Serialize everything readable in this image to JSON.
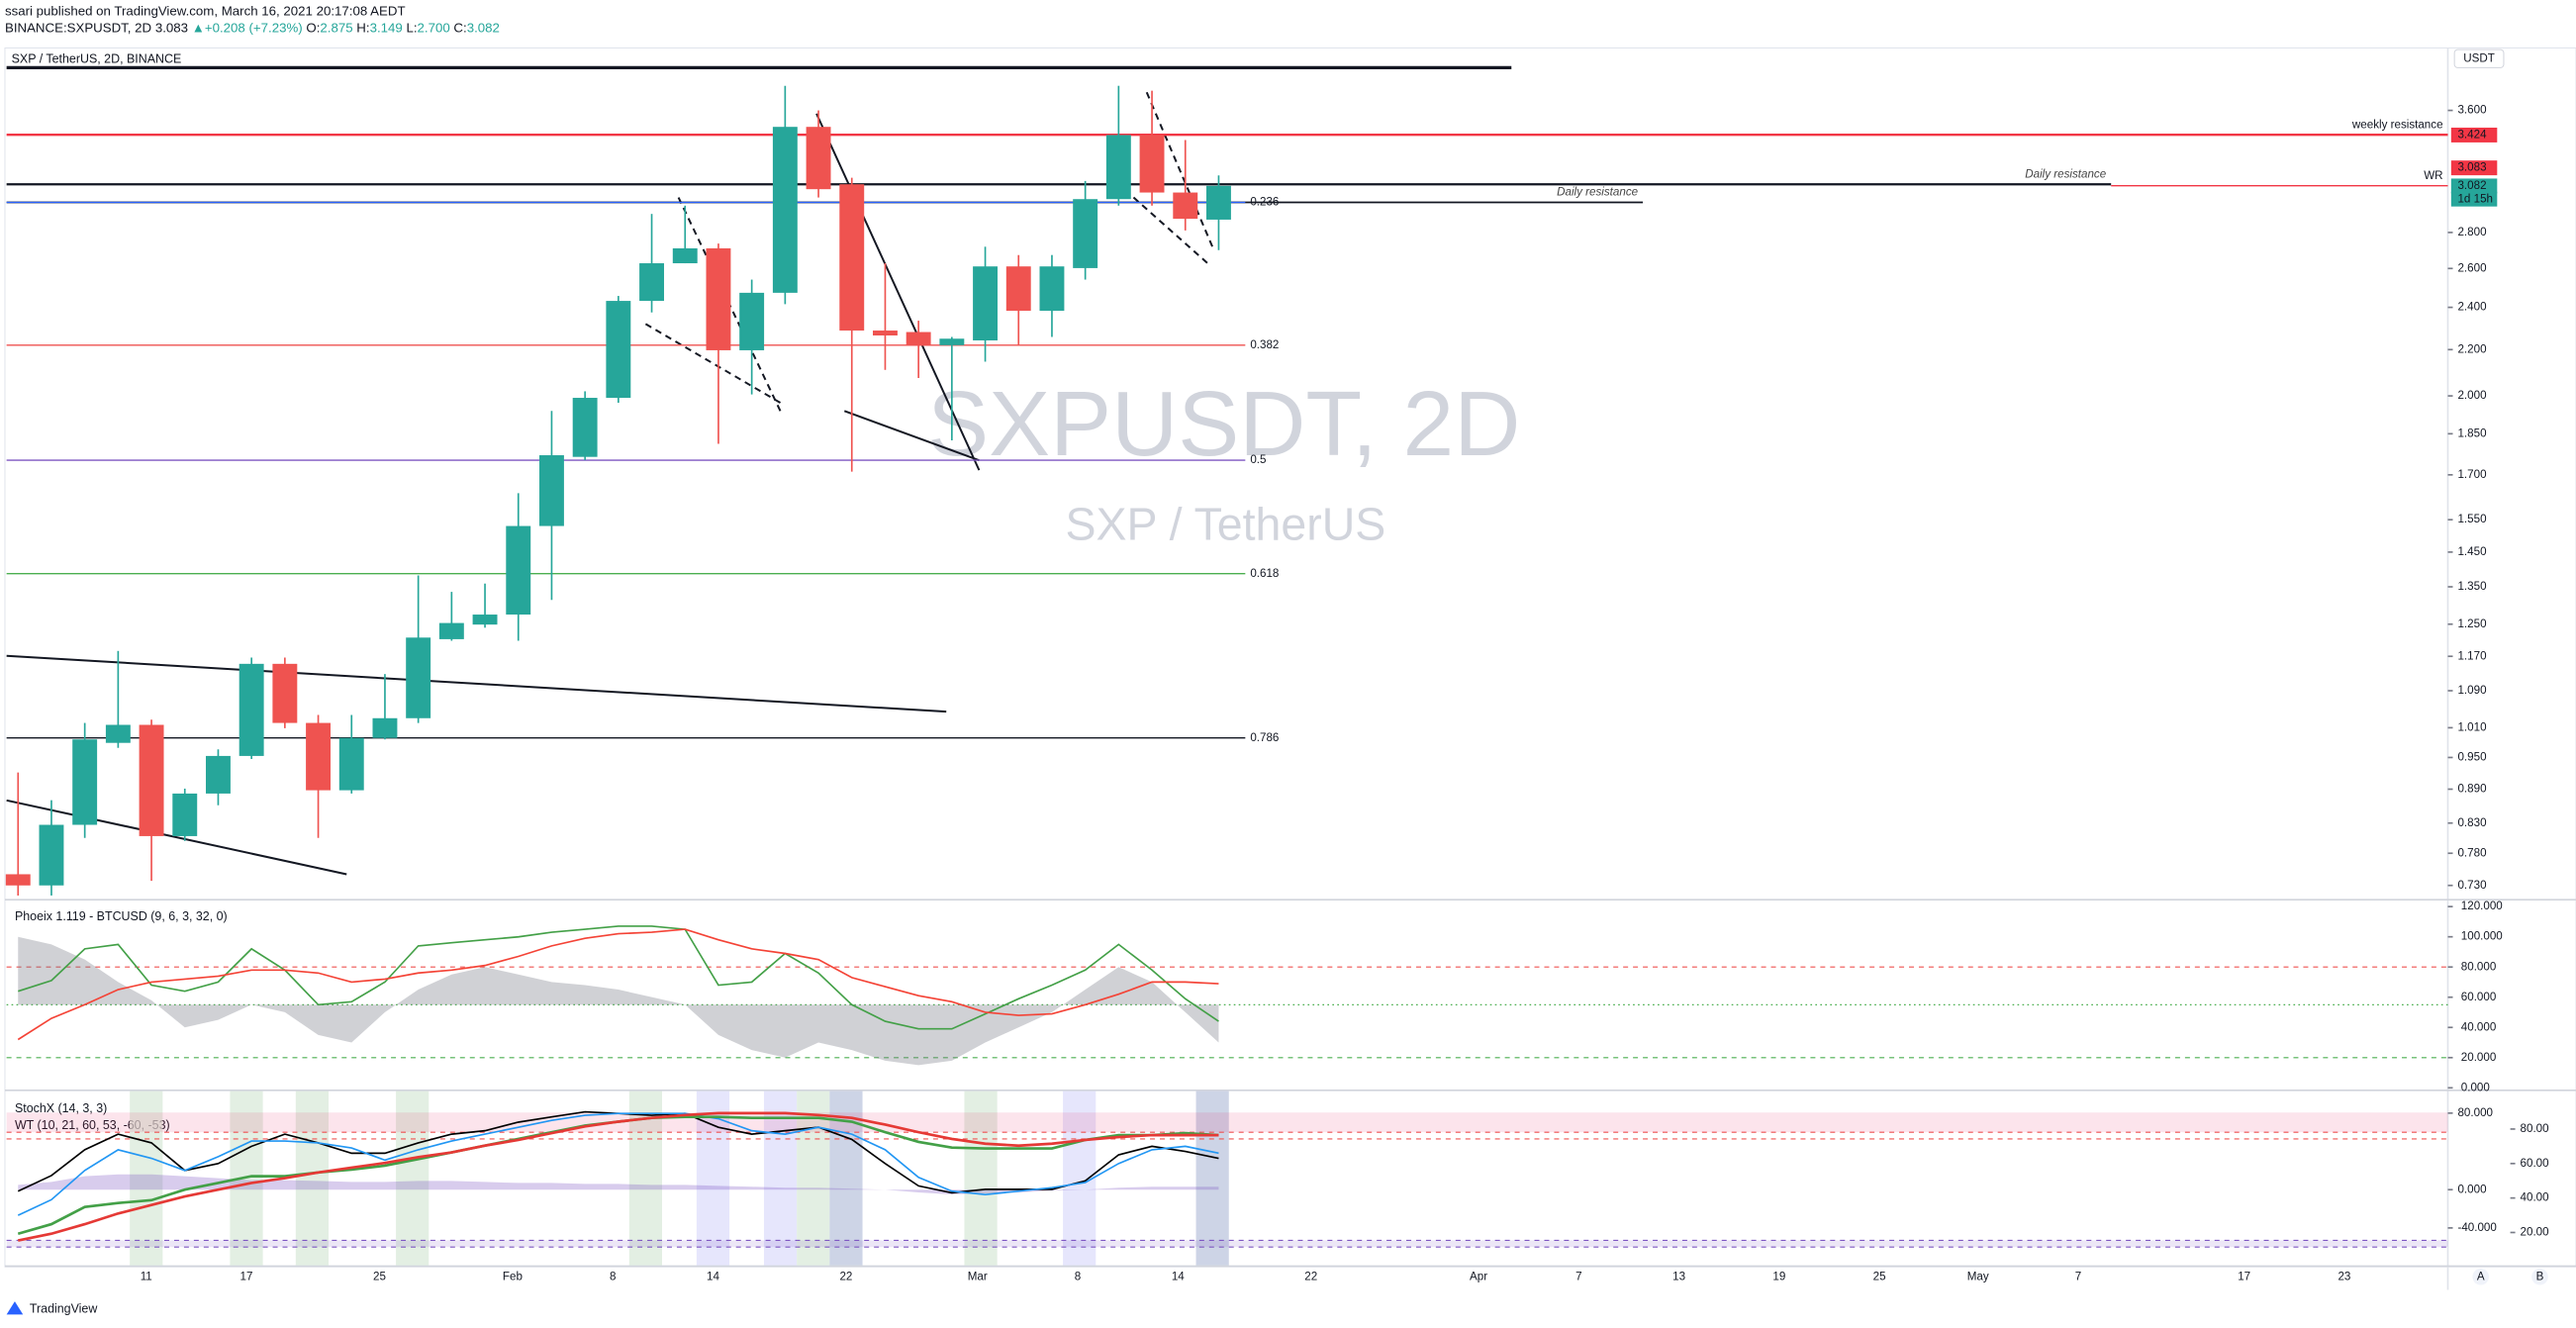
{
  "header": {
    "line1": "ssari published on TradingView.com, March 16, 2021 20:17:08 AEDT",
    "symbol": "BINANCE:SXPUSDT, 2D",
    "last": "3.083",
    "arrow": "▲",
    "change": "+0.208 (+7.23%)",
    "o_label": "O:",
    "o": "2.875",
    "h_label": "H:",
    "h": "3.149",
    "l_label": "L:",
    "l": "2.700",
    "c_label": "C:",
    "c": "3.082"
  },
  "footer": {
    "brand": "TradingView"
  },
  "currency_button": "USDT",
  "axis_buttons": [
    "A",
    "B"
  ],
  "chart_data": [
    {
      "type": "candlestick",
      "title": "SXP / TetherUS, 2D, BINANCE",
      "watermark": "SXPUSDT, 2D",
      "watermark_sub": "SXP / TetherUS",
      "log_scale": true,
      "ylim": [
        0.71,
        4.08
      ],
      "yticks": [
        {
          "value": 3.6,
          "label": "3.600"
        },
        {
          "value": 2.8,
          "label": "2.800"
        },
        {
          "value": 2.6,
          "label": "2.600"
        },
        {
          "value": 2.4,
          "label": "2.400"
        },
        {
          "value": 2.2,
          "label": "2.200"
        },
        {
          "value": 2.0,
          "label": "2.000"
        },
        {
          "value": 1.85,
          "label": "1.850"
        },
        {
          "value": 1.7,
          "label": "1.700"
        },
        {
          "value": 1.55,
          "label": "1.550"
        },
        {
          "value": 1.45,
          "label": "1.450"
        },
        {
          "value": 1.35,
          "label": "1.350"
        },
        {
          "value": 1.25,
          "label": "1.250"
        },
        {
          "value": 1.17,
          "label": "1.170"
        },
        {
          "value": 1.09,
          "label": "1.090"
        },
        {
          "value": 1.01,
          "label": "1.010"
        },
        {
          "value": 0.95,
          "label": "0.950"
        },
        {
          "value": 0.89,
          "label": "0.890"
        },
        {
          "value": 0.83,
          "label": "0.830"
        },
        {
          "value": 0.78,
          "label": "0.780"
        },
        {
          "value": 0.73,
          "label": "0.730"
        }
      ],
      "up_color": "#26a69a",
      "down_color": "#ef5350",
      "open": [
        0.747,
        0.73,
        0.827,
        0.979,
        1.016,
        0.808,
        0.882,
        0.953,
        1.152,
        1.02,
        0.888,
        0.989,
        1.03,
        1.212,
        1.249,
        1.275,
        1.53,
        1.764,
        1.992,
        2.432,
        2.628,
        2.71,
        2.197,
        2.473,
        3.48,
        3.092,
        2.288,
        2.281,
        2.22,
        2.242,
        2.611,
        2.383,
        2.602,
        2.999,
        3.422,
        3.04,
        2.875
      ],
      "high": [
        0.921,
        0.87,
        1.02,
        1.183,
        1.027,
        0.891,
        0.966,
        1.167,
        1.167,
        1.037,
        1.037,
        1.128,
        1.382,
        1.336,
        1.359,
        1.637,
        1.939,
        2.019,
        2.457,
        2.909,
        2.959,
        2.737,
        2.541,
        3.787,
        3.6,
        3.134,
        2.628,
        2.335,
        2.258,
        2.719,
        2.673,
        2.673,
        3.113,
        3.787,
        3.749,
        3.387,
        3.149
      ],
      "low": [
        0.715,
        0.715,
        0.805,
        0.969,
        0.737,
        0.8,
        0.861,
        0.947,
        1.009,
        0.805,
        0.882,
        0.986,
        1.02,
        1.208,
        1.241,
        1.208,
        1.314,
        1.752,
        1.972,
        2.375,
        2.628,
        1.812,
        2.006,
        2.416,
        3.009,
        1.711,
        2.11,
        2.075,
        1.825,
        2.146,
        2.22,
        2.258,
        2.541,
        2.959,
        2.959,
        2.812,
        2.7
      ],
      "close": [
        0.73,
        0.827,
        0.986,
        1.016,
        0.808,
        0.882,
        0.953,
        1.152,
        1.02,
        0.888,
        0.989,
        1.03,
        1.216,
        1.253,
        1.275,
        1.53,
        1.77,
        1.992,
        2.432,
        2.628,
        2.71,
        2.197,
        2.473,
        3.48,
        3.061,
        2.288,
        2.265,
        2.22,
        2.25,
        2.611,
        2.383,
        2.611,
        2.999,
        3.422,
        3.04,
        2.88,
        3.082
      ],
      "x_labels": [
        "11",
        "17",
        "25",
        "Feb",
        "8",
        "14",
        "22",
        "Mar",
        "8",
        "14",
        "22",
        "Apr",
        "7",
        "13",
        "19",
        "25",
        "May",
        "7",
        "17",
        "23"
      ],
      "levels": [
        {
          "price": 3.931,
          "color": "#131722"
        },
        {
          "price": 3.424,
          "color": "#f23645",
          "label": "weekly resistance"
        },
        {
          "price": 3.092,
          "color": "#131722",
          "label": "Daily resistance"
        },
        {
          "price": 3.083,
          "color": "#f23645",
          "label": "WR"
        },
        {
          "price": 2.979,
          "color": "#131722",
          "label": "Daily resistance"
        }
      ],
      "fib_levels": [
        {
          "label": "0.236",
          "price": 2.979,
          "color": "#2962ff"
        },
        {
          "label": "0.382",
          "price": 2.22,
          "color": "#ef5350"
        },
        {
          "label": "0.5",
          "price": 1.752,
          "color": "#7e57c2"
        },
        {
          "label": "0.618",
          "price": 1.387,
          "color": "#4caf50"
        },
        {
          "label": "0.786",
          "price": 0.989,
          "color": "#131722"
        }
      ],
      "badges": [
        {
          "text": "3.424",
          "color": "#f23645"
        },
        {
          "text": "3.083",
          "color": "#f23645"
        },
        {
          "text": "3.082",
          "color": "#26a69a"
        },
        {
          "text": "1d 15h",
          "color": "#26a69a"
        }
      ]
    },
    {
      "type": "line",
      "title": "Phoeix 1.119 - BTCUSD (9, 6, 3, 32, 0)",
      "ylim": [
        0,
        124
      ],
      "yticks": [
        {
          "value": 120,
          "label": "120.000"
        },
        {
          "value": 100,
          "label": "100.000"
        },
        {
          "value": 80,
          "label": "80.000"
        },
        {
          "value": 60,
          "label": "60.000"
        },
        {
          "value": 40,
          "label": "40.000"
        },
        {
          "value": 20,
          "label": "20.000"
        },
        {
          "value": 0,
          "label": "0.000"
        }
      ],
      "levels": [
        {
          "value": 80,
          "color": "#ef5350"
        },
        {
          "value": 55,
          "color": "#4caf50"
        },
        {
          "value": 20,
          "color": "#4caf50"
        }
      ],
      "series": [
        {
          "color": "#9e9e9e",
          "fill": "rgba(120,123,134,0.35)",
          "values": [
            100,
            95,
            85,
            70,
            58,
            40,
            45,
            55,
            50,
            35,
            30,
            50,
            65,
            75,
            80,
            75,
            70,
            68,
            65,
            60,
            55,
            35,
            25,
            20,
            30,
            25,
            18,
            15,
            18,
            30,
            40,
            50,
            65,
            80,
            70,
            50,
            30
          ]
        },
        {
          "color": "#43a047",
          "values": [
            64,
            71,
            92,
            95,
            68,
            64,
            70,
            92,
            78,
            55,
            57,
            70,
            94,
            96,
            98,
            100,
            103,
            105,
            107,
            107,
            105,
            68,
            70,
            89,
            76,
            55,
            44,
            39,
            39,
            49,
            59,
            68,
            78,
            95,
            78,
            59,
            44
          ]
        },
        {
          "color": "#f44336",
          "values": [
            32,
            46,
            55,
            65,
            70,
            72,
            74,
            78,
            78,
            76,
            70,
            72,
            76,
            78,
            81,
            87,
            94,
            99,
            102,
            103,
            105,
            98,
            92,
            89,
            85,
            73,
            67,
            61,
            57,
            50,
            48,
            49,
            55,
            62,
            70,
            70,
            69
          ]
        }
      ]
    },
    {
      "type": "line",
      "title": "StochX (14, 3, 3)",
      "subtitle": "WT (10, 21, 60, 53, -60, -53)",
      "ylim": [
        -79,
        103
      ],
      "yticks": [
        {
          "value": 80,
          "label": "80.000"
        },
        {
          "value": 0,
          "label": "0.000"
        },
        {
          "value": -40,
          "label": "-40.000"
        }
      ],
      "y2lim": [
        1,
        102
      ],
      "y2ticks": [
        {
          "value": 80,
          "label": "80.00"
        },
        {
          "value": 60,
          "label": "60.00"
        },
        {
          "value": 40,
          "label": "40.00"
        },
        {
          "value": 20,
          "label": "20.00"
        }
      ],
      "levels": [
        {
          "value": 60,
          "color": "#ef5350"
        },
        {
          "value": 53,
          "color": "#ef5350"
        },
        {
          "value": -53,
          "color": "#7e57c2"
        },
        {
          "value": -60,
          "color": "#7e57c2"
        }
      ],
      "series": [
        {
          "color": "#7e57c2",
          "fill": "rgba(126,87,194,0.3)",
          "values": [
            5,
            8,
            14,
            16,
            16,
            14,
            12,
            10,
            10,
            9,
            8,
            8,
            9,
            9,
            8,
            7,
            7,
            6,
            6,
            5,
            5,
            4,
            3,
            2,
            2,
            1,
            0,
            -3,
            -5,
            -4,
            -3,
            -1,
            0,
            2,
            3,
            3,
            3
          ]
        },
        {
          "color": "#000000",
          "axis": "y2",
          "values": [
            44,
            53,
            68,
            77,
            72,
            56,
            60,
            70,
            77,
            72,
            66,
            66,
            72,
            77,
            79,
            84,
            87,
            90,
            89,
            88,
            89,
            81,
            77,
            79,
            81,
            74,
            60,
            47,
            43,
            45,
            45,
            45,
            50,
            65,
            70,
            67,
            63
          ]
        },
        {
          "color": "#2196f3",
          "axis": "y2",
          "values": [
            30,
            39,
            56,
            68,
            63,
            56,
            64,
            73,
            73,
            72,
            69,
            62,
            68,
            73,
            77,
            81,
            85,
            88,
            89,
            89,
            89,
            86,
            79,
            77,
            81,
            77,
            68,
            52,
            44,
            42,
            44,
            46,
            49,
            60,
            68,
            70,
            66
          ]
        },
        {
          "color": "#43a047",
          "values": [
            -46,
            -36,
            -18,
            -14,
            -11,
            0,
            7,
            14,
            14,
            18,
            21,
            25,
            32,
            39,
            46,
            53,
            60,
            67,
            71,
            75,
            76,
            76,
            75,
            75,
            75,
            71,
            60,
            50,
            44,
            43,
            43,
            43,
            52,
            57,
            57,
            59,
            57
          ]
        },
        {
          "color": "#e53935",
          "values": [
            -53,
            -46,
            -36,
            -25,
            -16,
            -7,
            0,
            7,
            12,
            18,
            23,
            28,
            34,
            39,
            46,
            52,
            59,
            66,
            71,
            75,
            78,
            80,
            80,
            80,
            78,
            75,
            68,
            60,
            53,
            48,
            46,
            48,
            52,
            55,
            57,
            57,
            57
          ]
        }
      ]
    }
  ]
}
